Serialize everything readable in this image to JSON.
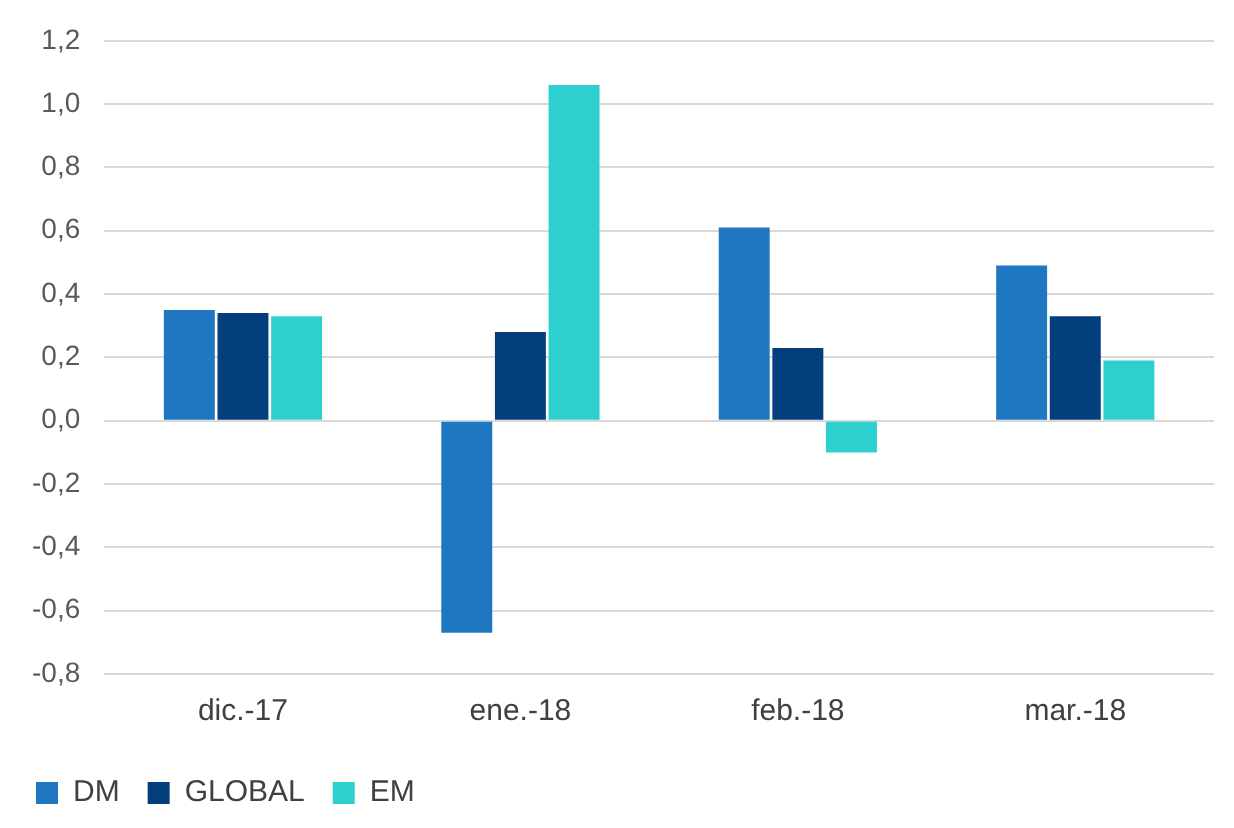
{
  "chart_data": {
    "type": "bar",
    "categories": [
      "dic.-17",
      "ene.-18",
      "feb.-18",
      "mar.-18"
    ],
    "series": [
      {
        "name": "DM",
        "color": "#1f77c1",
        "values": [
          0.35,
          -0.67,
          0.61,
          0.49
        ]
      },
      {
        "name": "GLOBAL",
        "color": "#023f7c",
        "values": [
          0.34,
          0.28,
          0.23,
          0.33
        ]
      },
      {
        "name": "EM",
        "color": "#2ecfcf",
        "values": [
          0.33,
          1.06,
          -0.1,
          0.19
        ]
      }
    ],
    "ylim": [
      -0.8,
      1.2
    ],
    "yticks": [
      {
        "value": -0.8,
        "label": "-0,8"
      },
      {
        "value": -0.6,
        "label": "-0,6"
      },
      {
        "value": -0.4,
        "label": "-0,4"
      },
      {
        "value": -0.2,
        "label": "-0,2"
      },
      {
        "value": 0,
        "label": "0,0"
      },
      {
        "value": 0.2,
        "label": "0,2"
      },
      {
        "value": 0.4,
        "label": "0,4"
      },
      {
        "value": 0.6,
        "label": "0,6"
      },
      {
        "value": 0.8,
        "label": "0,8"
      },
      {
        "value": 1,
        "label": "1,0"
      },
      {
        "value": 1.2,
        "label": "1,2"
      }
    ],
    "grid": "y",
    "legend": "bottom left"
  }
}
